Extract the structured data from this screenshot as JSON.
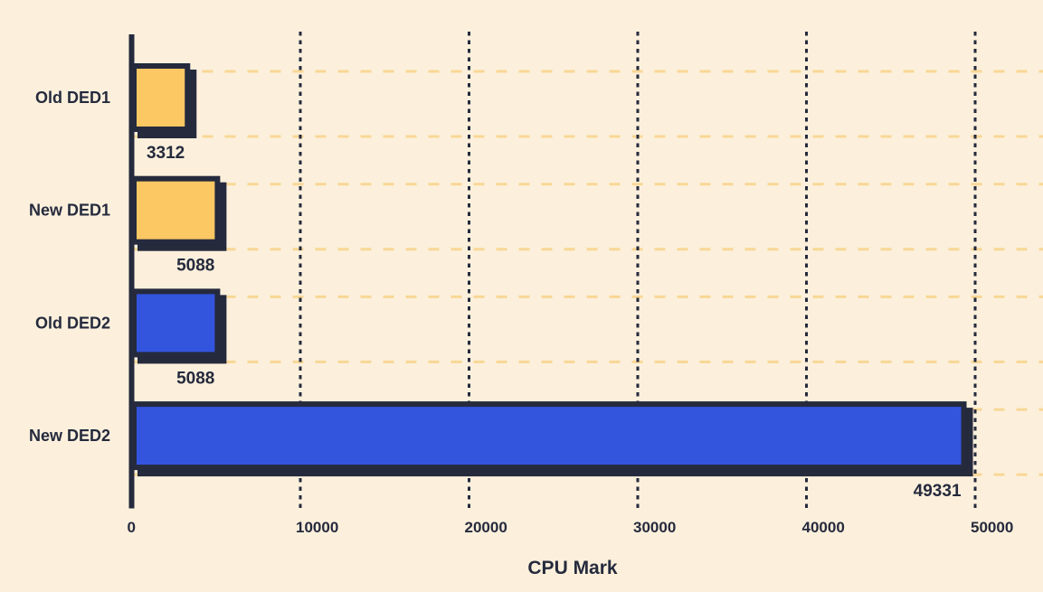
{
  "chart_data": {
    "type": "bar",
    "orientation": "horizontal",
    "title": "",
    "xlabel": "CPU Mark",
    "ylabel": "",
    "categories": [
      "Old DED1",
      "New DED1",
      "Old DED2",
      "New DED2"
    ],
    "values": [
      3312,
      5088,
      5088,
      49331
    ],
    "value_labels": [
      "3312",
      "5088",
      "5088",
      "49331"
    ],
    "bar_colors": [
      "#FBC863",
      "#FBC863",
      "#3355DE",
      "#3355DE"
    ],
    "xlim": [
      0,
      50000
    ],
    "x_ticks": [
      0,
      10000,
      20000,
      30000,
      40000,
      50000
    ],
    "x_tick_labels": [
      "0",
      "10000",
      "20000",
      "30000",
      "40000",
      "50000"
    ],
    "grid": {
      "vertical_style": "dotted-dark",
      "horizontal_style": "dashed-light"
    },
    "legend_position": "none"
  },
  "style": {
    "background": "#FCF0DC",
    "ink": "#252A3D",
    "grid_light": "#F8D795",
    "bar_orange": "#FBC863",
    "bar_blue": "#3355DE"
  }
}
